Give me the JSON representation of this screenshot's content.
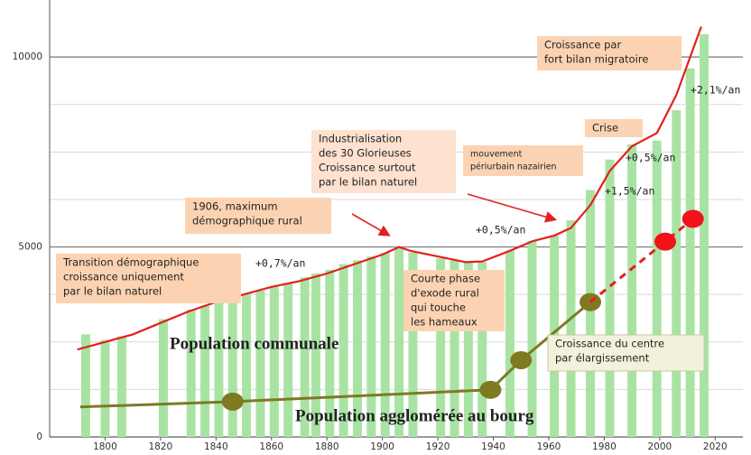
{
  "chart_data": {
    "type": "bar",
    "xlim": [
      1780,
      2030
    ],
    "ylim": [
      0,
      11500
    ],
    "xticks": [
      1800,
      1820,
      1840,
      1860,
      1880,
      1900,
      1920,
      1940,
      1960,
      1980,
      2000,
      2020
    ],
    "yticks": [
      0,
      5000,
      10000
    ],
    "minor_yticks": [
      1250,
      2500,
      3750,
      6250,
      7500,
      8750
    ],
    "bars": {
      "color": "#a9e3a4",
      "x": [
        1793,
        1800,
        1806,
        1821,
        1831,
        1836,
        1841,
        1846,
        1851,
        1856,
        1861,
        1866,
        1872,
        1876,
        1881,
        1886,
        1891,
        1896,
        1901,
        1906,
        1911,
        1921,
        1926,
        1931,
        1936,
        1946,
        1954,
        1962,
        1968,
        1975,
        1982,
        1990,
        1999,
        2006,
        2011,
        2016
      ],
      "values": [
        2700,
        2550,
        2650,
        3100,
        3350,
        3450,
        3550,
        3650,
        3750,
        3850,
        3950,
        4050,
        4200,
        4300,
        4400,
        4550,
        4650,
        4750,
        4850,
        5000,
        4850,
        4700,
        4650,
        4600,
        4600,
        4900,
        5150,
        5300,
        5700,
        6500,
        7300,
        7700,
        7800,
        8600,
        9700,
        10600
      ]
    },
    "series": [
      {
        "name": "Population communale",
        "color": "#e3201b",
        "x": [
          1790,
          1800,
          1810,
          1820,
          1830,
          1840,
          1850,
          1860,
          1870,
          1880,
          1890,
          1900,
          1906,
          1910,
          1920,
          1930,
          1936,
          1946,
          1954,
          1962,
          1968,
          1975,
          1982,
          1990,
          1999,
          2006,
          2011,
          2015
        ],
        "values": [
          2300,
          2500,
          2700,
          3000,
          3300,
          3550,
          3750,
          3950,
          4100,
          4300,
          4550,
          4800,
          5000,
          4900,
          4750,
          4600,
          4620,
          4900,
          5150,
          5300,
          5500,
          6100,
          7000,
          7650,
          8000,
          9000,
          10000,
          10800
        ]
      },
      {
        "name": "Population agglomérée au bourg",
        "color": "#7d7a24",
        "marker_color": "#7f7a22",
        "x": [
          1791,
          1846,
          1939,
          1950,
          1975
        ],
        "values": [
          790,
          930,
          1240,
          2020,
          3550
        ],
        "markers": [
          false,
          true,
          true,
          true,
          true
        ]
      },
      {
        "color": "#e3201b",
        "marker_color": "#f0141a",
        "dashed": true,
        "x": [
          1975,
          2002,
          2012
        ],
        "values": [
          3550,
          5140,
          5740
        ],
        "markers": [
          false,
          true,
          true
        ]
      }
    ],
    "annotations": [
      {
        "lines": [
          "Croissance par",
          "fort  bilan migratoire"
        ]
      },
      {
        "lines": [
          "Industrialisation",
          "des 30 Glorieuses",
          "Croissance surtout",
          "par le bilan naturel"
        ]
      },
      {
        "lines": [
          "mouvement",
          "périurbain nazairien"
        ]
      },
      {
        "lines": [
          "Crise"
        ]
      },
      {
        "lines": [
          "1906, maximum",
          "démographique rural"
        ]
      },
      {
        "lines": [
          "Transition démographique",
          "croissance uniquement",
          "par le bilan naturel"
        ]
      },
      {
        "lines": [
          "Courte phase",
          "d'exode rural",
          "qui touche",
          "les hameaux"
        ]
      },
      {
        "lines": [
          "Croissance du centre",
          "par élargissement"
        ]
      }
    ],
    "rate_labels": [
      "+2,1%/an",
      "+0,5%/an",
      "+1,5%/an",
      "+0,5%/an",
      "+0,7%/an"
    ]
  }
}
